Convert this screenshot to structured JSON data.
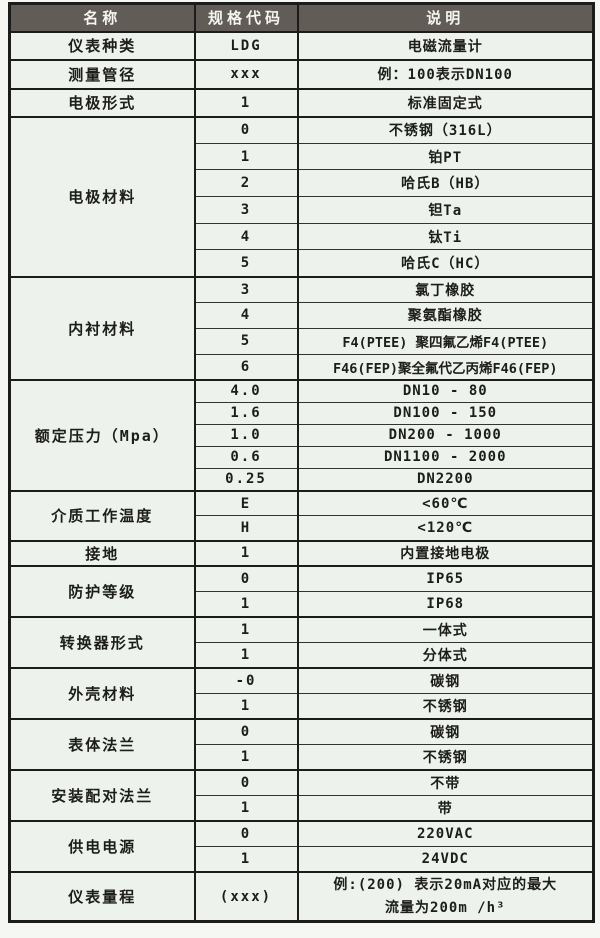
{
  "colors": {
    "header_bg": "#615c55",
    "header_text": "#f5f5f1",
    "cell_bg": "#edf2ec",
    "page_bg": "#f4f7f2",
    "border": "#1c1c1c",
    "text": "#1d1d1b"
  },
  "header": {
    "columns": [
      "名称",
      "规格代码",
      "说明"
    ]
  },
  "sections": [
    {
      "name": "仪表种类",
      "rows": [
        {
          "code": "LDG",
          "desc": "电磁流量计"
        }
      ]
    },
    {
      "name": "测量管径",
      "rows": [
        {
          "code": "xxx",
          "desc": "例：100表示DN100"
        }
      ]
    },
    {
      "name": "电极形式",
      "rows": [
        {
          "code": "1",
          "desc": "标准固定式"
        }
      ]
    },
    {
      "name": "电极材料",
      "rows": [
        {
          "code": "0",
          "desc": "不锈钢（316L）"
        },
        {
          "code": "1",
          "desc": "铂PT"
        },
        {
          "code": "2",
          "desc": "哈氏B（HB）"
        },
        {
          "code": "3",
          "desc": "钽Ta"
        },
        {
          "code": "4",
          "desc": "钛Ti"
        },
        {
          "code": "5",
          "desc": "哈氏C（HC）"
        }
      ]
    },
    {
      "name": "内衬材料",
      "rows": [
        {
          "code": "3",
          "desc": "氯丁橡胶"
        },
        {
          "code": "4",
          "desc": "聚氨酯橡胶"
        },
        {
          "code": "5",
          "desc": "F4(PTEE) 聚四氟乙烯F4(PTEE)"
        },
        {
          "code": "6",
          "desc": "F46(FEP)聚全氟代乙丙烯F46(FEP)"
        }
      ]
    },
    {
      "name": "额定压力（Mpa）",
      "rows": [
        {
          "code": "4.0",
          "desc": "DN10 - 80"
        },
        {
          "code": "1.6",
          "desc": "DN100 - 150"
        },
        {
          "code": "1.0",
          "desc": "DN200 - 1000"
        },
        {
          "code": "0.6",
          "desc": "DN1100 - 2000"
        },
        {
          "code": "0.25",
          "desc": "DN2200"
        }
      ]
    },
    {
      "name": "介质工作温度",
      "rows": [
        {
          "code": "E",
          "desc": "<60℃"
        },
        {
          "code": "H",
          "desc": "<120℃"
        }
      ]
    },
    {
      "name": "接地",
      "rows": [
        {
          "code": "1",
          "desc": "内置接地电极"
        }
      ]
    },
    {
      "name": "防护等级",
      "rows": [
        {
          "code": "0",
          "desc": "IP65"
        },
        {
          "code": "1",
          "desc": "IP68"
        }
      ]
    },
    {
      "name": "转换器形式",
      "rows": [
        {
          "code": "1",
          "desc": "一体式"
        },
        {
          "code": "1",
          "desc": "分体式"
        }
      ]
    },
    {
      "name": "外壳材料",
      "rows": [
        {
          "code": "-0",
          "desc": "碳钢"
        },
        {
          "code": "1",
          "desc": "不锈钢"
        }
      ]
    },
    {
      "name": "表体法兰",
      "rows": [
        {
          "code": "0",
          "desc": "碳钢"
        },
        {
          "code": "1",
          "desc": "不锈钢"
        }
      ]
    },
    {
      "name": "安装配对法兰",
      "rows": [
        {
          "code": "0",
          "desc": "不带"
        },
        {
          "code": "1",
          "desc": "带"
        }
      ]
    },
    {
      "name": "供电电源",
      "rows": [
        {
          "code": "0",
          "desc": "220VAC"
        },
        {
          "code": "1",
          "desc": "24VDC"
        }
      ]
    },
    {
      "name": "仪表量程",
      "rows": [
        {
          "code": "(xxx)",
          "desc": [
            "例:(200) 表示20mA对应的最大",
            "流量为200m /h³"
          ]
        }
      ]
    }
  ]
}
